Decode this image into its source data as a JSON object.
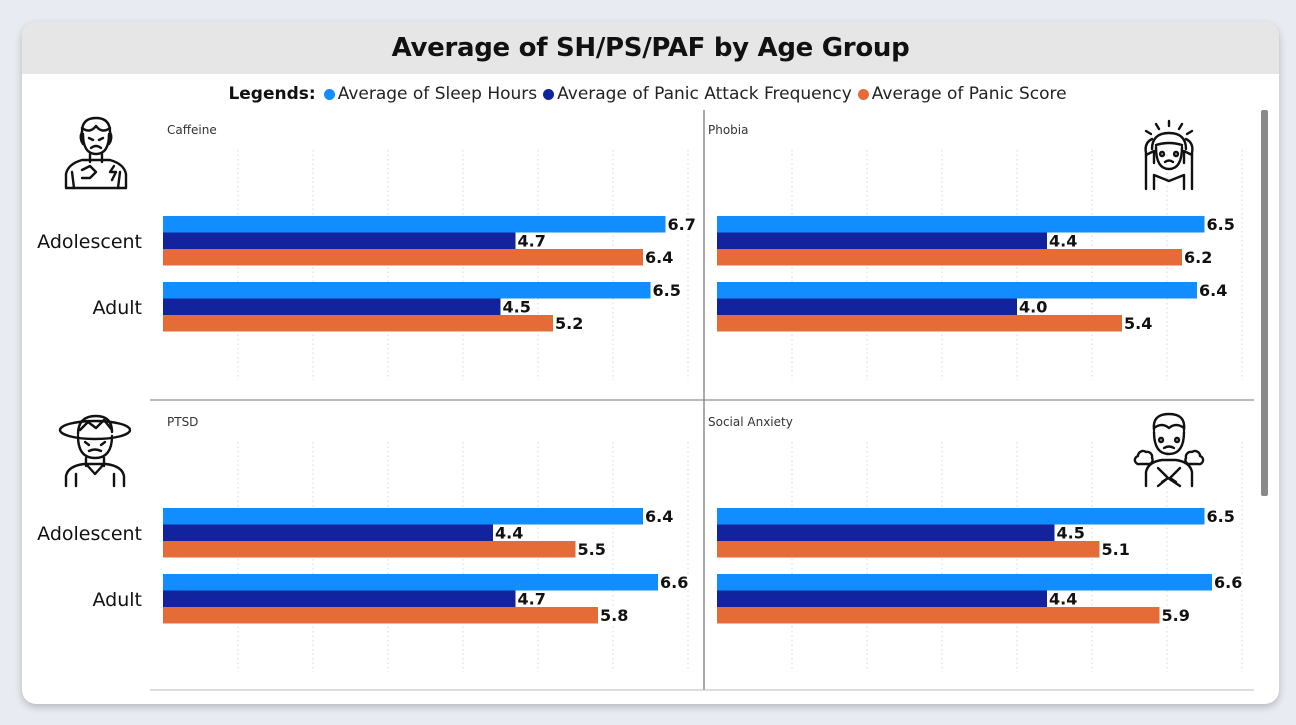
{
  "title": "Average of SH/PS/PAF by Age Group",
  "legend": {
    "title": "Legends:",
    "items": [
      {
        "label": "Average of Sleep Hours",
        "color": "#118dff"
      },
      {
        "label": "Average of Panic Attack Frequency",
        "color": "#12239e"
      },
      {
        "label": "Average of Panic Score",
        "color": "#e66c37"
      }
    ]
  },
  "chart_data": [
    {
      "type": "bar",
      "title": "Caffeine",
      "icon": "stressed-person-icon",
      "categories": [
        "Adolescent",
        "Adult"
      ],
      "series": [
        {
          "name": "Average of Sleep Hours",
          "values": [
            6.7,
            6.5
          ]
        },
        {
          "name": "Average of Panic Attack Frequency",
          "values": [
            4.7,
            4.5
          ]
        },
        {
          "name": "Average of Panic Score",
          "values": [
            6.4,
            5.2
          ]
        }
      ]
    },
    {
      "type": "bar",
      "title": "Phobia",
      "icon": "frightened-person-icon",
      "categories": [
        "Adolescent",
        "Adult"
      ],
      "series": [
        {
          "name": "Average of Sleep Hours",
          "values": [
            6.5,
            6.4
          ]
        },
        {
          "name": "Average of Panic Attack Frequency",
          "values": [
            4.4,
            4.0
          ]
        },
        {
          "name": "Average of Panic Score",
          "values": [
            6.2,
            5.4
          ]
        }
      ]
    },
    {
      "type": "bar",
      "title": "PTSD",
      "icon": "dizzy-person-icon",
      "categories": [
        "Adolescent",
        "Adult"
      ],
      "series": [
        {
          "name": "Average of Sleep Hours",
          "values": [
            6.4,
            6.6
          ]
        },
        {
          "name": "Average of Panic Attack Frequency",
          "values": [
            4.4,
            4.7
          ]
        },
        {
          "name": "Average of Panic Score",
          "values": [
            5.5,
            5.8
          ]
        }
      ]
    },
    {
      "type": "bar",
      "title": "Social Anxiety",
      "icon": "anxious-person-icon",
      "categories": [
        "Adolescent",
        "Adult"
      ],
      "series": [
        {
          "name": "Average of Sleep Hours",
          "values": [
            6.5,
            6.6
          ]
        },
        {
          "name": "Average of Panic Attack Frequency",
          "values": [
            4.5,
            4.4
          ]
        },
        {
          "name": "Average of Panic Score",
          "values": [
            5.1,
            5.9
          ]
        }
      ]
    }
  ]
}
